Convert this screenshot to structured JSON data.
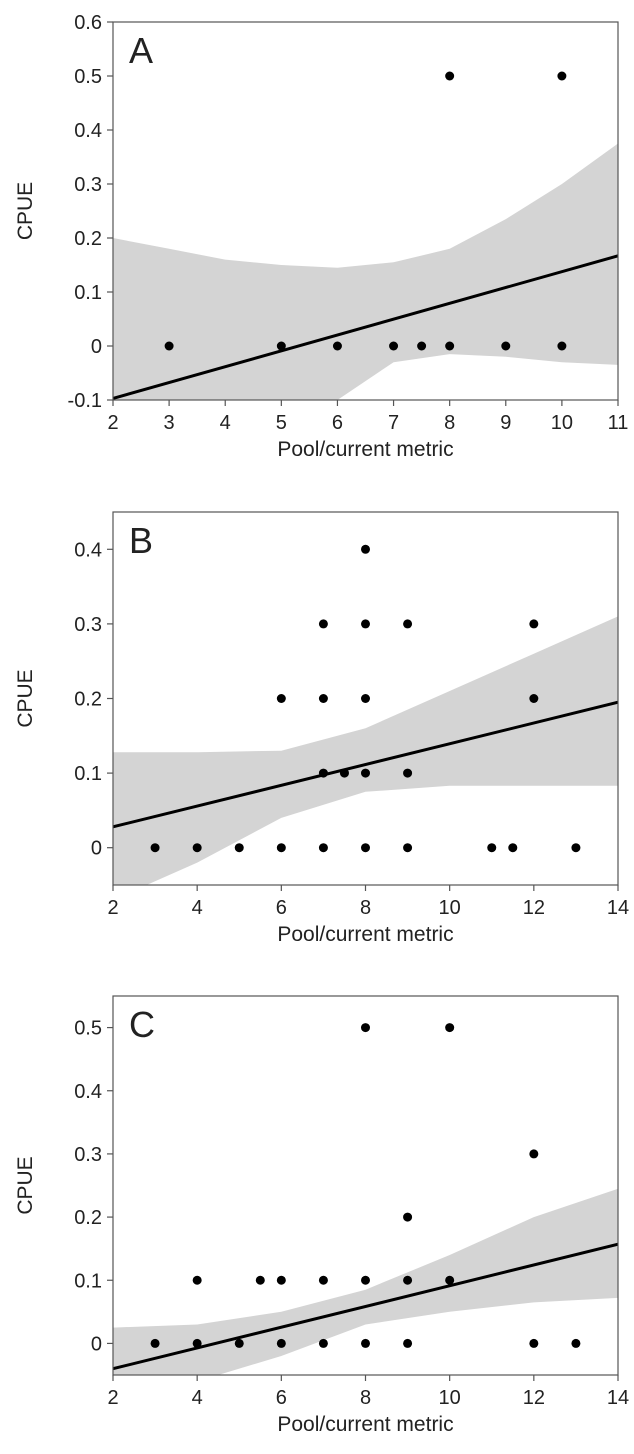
{
  "colors": {
    "band": "#d4d4d4",
    "line": "#000000",
    "point": "#000000",
    "frame": "#555555",
    "text": "#222222"
  },
  "chart_data": [
    {
      "type": "scatter",
      "panel": "A",
      "title": "",
      "xlabel": "Pool/current metric",
      "ylabel": "CPUE",
      "xlim": [
        2,
        11
      ],
      "ylim": [
        -0.1,
        0.6
      ],
      "xticks": [
        2,
        3,
        4,
        5,
        6,
        7,
        8,
        9,
        10,
        11
      ],
      "yticks": [
        -0.1,
        0,
        0.1,
        0.2,
        0.3,
        0.4,
        0.5,
        0.6
      ],
      "xtick_labels": [
        "2",
        "3",
        "4",
        "5",
        "6",
        "7",
        "8",
        "9",
        "10",
        "11"
      ],
      "ytick_labels": [
        "-0.1",
        "0",
        "0.1",
        "0.2",
        "0.3",
        "0.4",
        "0.5",
        "0.6"
      ],
      "points": [
        [
          3,
          0
        ],
        [
          5,
          0
        ],
        [
          6,
          0
        ],
        [
          7,
          0
        ],
        [
          7.5,
          0
        ],
        [
          8,
          0
        ],
        [
          9,
          0
        ],
        [
          10,
          0
        ],
        [
          8,
          0.5
        ],
        [
          10,
          0.5
        ]
      ],
      "fit_line": [
        [
          2,
          -0.097
        ],
        [
          11,
          0.167
        ]
      ],
      "ci_band": {
        "x": [
          2,
          3,
          4,
          5,
          6,
          7,
          8,
          9,
          10,
          11
        ],
        "upper": [
          0.2,
          0.18,
          0.16,
          0.15,
          0.145,
          0.155,
          0.18,
          0.235,
          0.3,
          0.375
        ],
        "lower": [
          -0.4,
          -0.32,
          -0.25,
          -0.17,
          -0.1,
          -0.03,
          -0.015,
          -0.02,
          -0.03,
          -0.035
        ]
      },
      "grid": false,
      "legend": "none"
    },
    {
      "type": "scatter",
      "panel": "B",
      "title": "",
      "xlabel": "Pool/current metric",
      "ylabel": "CPUE",
      "xlim": [
        2,
        14
      ],
      "ylim": [
        -0.05,
        0.45
      ],
      "xticks": [
        2,
        4,
        6,
        8,
        10,
        12,
        14
      ],
      "yticks": [
        0,
        0.1,
        0.2,
        0.3,
        0.4
      ],
      "xtick_labels": [
        "2",
        "4",
        "6",
        "8",
        "10",
        "12",
        "14"
      ],
      "ytick_labels": [
        "0",
        "0.1",
        "0.2",
        "0.3",
        "0.4"
      ],
      "points": [
        [
          3,
          0
        ],
        [
          4,
          0
        ],
        [
          5,
          0
        ],
        [
          6,
          0
        ],
        [
          7,
          0
        ],
        [
          8,
          0
        ],
        [
          9,
          0
        ],
        [
          11,
          0
        ],
        [
          11.5,
          0
        ],
        [
          13,
          0
        ],
        [
          7,
          0.1
        ],
        [
          7.5,
          0.1
        ],
        [
          8,
          0.1
        ],
        [
          9,
          0.1
        ],
        [
          6,
          0.2
        ],
        [
          7,
          0.2
        ],
        [
          8,
          0.2
        ],
        [
          12,
          0.2
        ],
        [
          7,
          0.3
        ],
        [
          8,
          0.3
        ],
        [
          9,
          0.3
        ],
        [
          12,
          0.3
        ],
        [
          8,
          0.4
        ]
      ],
      "fit_line": [
        [
          2,
          0.028
        ],
        [
          14,
          0.195
        ]
      ],
      "ci_band": {
        "x": [
          2,
          4,
          6,
          8,
          10,
          12,
          14
        ],
        "upper": [
          0.128,
          0.128,
          0.13,
          0.16,
          0.21,
          0.26,
          0.31
        ],
        "lower": [
          -0.07,
          -0.02,
          0.04,
          0.075,
          0.083,
          0.083,
          0.083
        ]
      },
      "grid": false,
      "legend": "none"
    },
    {
      "type": "scatter",
      "panel": "C",
      "title": "",
      "xlabel": "Pool/current metric",
      "ylabel": "CPUE",
      "xlim": [
        2,
        14
      ],
      "ylim": [
        -0.05,
        0.55
      ],
      "xticks": [
        2,
        4,
        6,
        8,
        10,
        12,
        14
      ],
      "yticks": [
        0,
        0.1,
        0.2,
        0.3,
        0.4,
        0.5
      ],
      "xtick_labels": [
        "2",
        "4",
        "6",
        "8",
        "10",
        "12",
        "14"
      ],
      "ytick_labels": [
        "0",
        "0.1",
        "0.2",
        "0.3",
        "0.4",
        "0.5"
      ],
      "points": [
        [
          3,
          0
        ],
        [
          4,
          0
        ],
        [
          5,
          0
        ],
        [
          6,
          0
        ],
        [
          7,
          0
        ],
        [
          8,
          0
        ],
        [
          9,
          0
        ],
        [
          12,
          0
        ],
        [
          13,
          0
        ],
        [
          4,
          0.1
        ],
        [
          5.5,
          0.1
        ],
        [
          6,
          0.1
        ],
        [
          7,
          0.1
        ],
        [
          8,
          0.1
        ],
        [
          9,
          0.1
        ],
        [
          10,
          0.1
        ],
        [
          9,
          0.2
        ],
        [
          12,
          0.3
        ],
        [
          8,
          0.5
        ],
        [
          10,
          0.5
        ]
      ],
      "fit_line": [
        [
          2,
          -0.04
        ],
        [
          14,
          0.157
        ]
      ],
      "ci_band": {
        "x": [
          2,
          4,
          6,
          8,
          10,
          12,
          14
        ],
        "upper": [
          0.025,
          0.03,
          0.05,
          0.085,
          0.14,
          0.2,
          0.245
        ],
        "lower": [
          -0.1,
          -0.06,
          -0.02,
          0.03,
          0.05,
          0.065,
          0.072
        ]
      },
      "grid": false,
      "legend": "none"
    }
  ]
}
